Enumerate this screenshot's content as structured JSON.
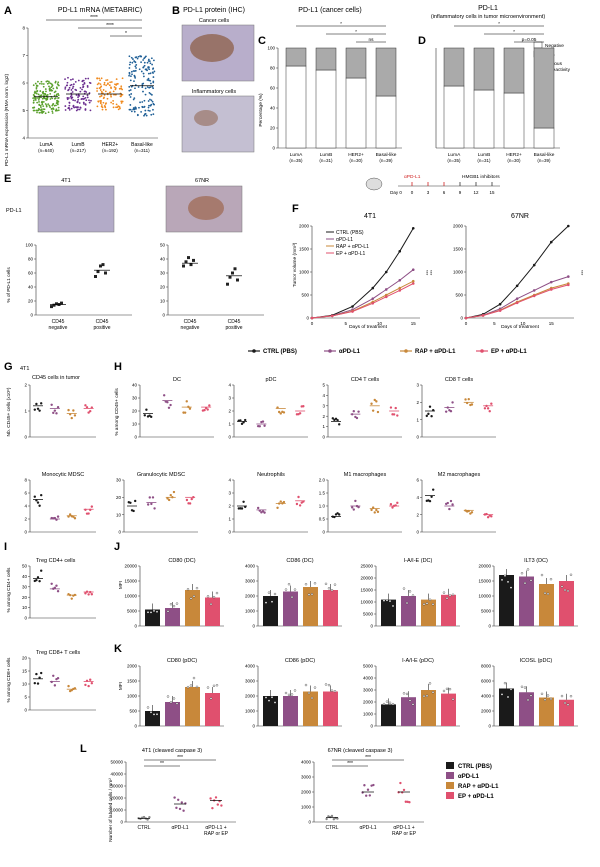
{
  "colors": {
    "ctrl": "#1a1a1a",
    "apdl1": "#8e4f86",
    "rap": "#c8883a",
    "ep": "#e0506e",
    "luma": "#5aa02c",
    "lumb": "#6a2d8f",
    "her2": "#f08a1e",
    "basal": "#1f5f96",
    "negative": "#ffffff",
    "positive": "#aaaaaa"
  },
  "legend_main": [
    "CTRL (PBS)",
    "αPD-L1",
    "RAP + αPD-L1",
    "EP + αPD-L1"
  ],
  "legend_L": [
    "CTRL (PBS)",
    "αPD-L1",
    "RAP + αPD-L1",
    "EP + αPD-L1"
  ],
  "schedule": {
    "apdl1_label": "αPD-L1",
    "hmgb1_label": "HMGB1 inhibitors",
    "days": [
      "Day 0",
      "0",
      "3",
      "6",
      "9",
      "12",
      "15"
    ]
  },
  "panelA": {
    "letter": "A",
    "title": "PD-L1 mRNA (METABRIC)",
    "ylabel": "PD-L1 mRNA expression (RMA norm. log2)",
    "groups": [
      "LumA",
      "LumB",
      "HER2+",
      "Basal-like"
    ],
    "ns": [
      "(n=640)",
      "(n=217)",
      "(n=192)",
      "(n=311)"
    ],
    "sig": [
      "****",
      "****",
      "*"
    ]
  },
  "panelB": {
    "letter": "B",
    "title": "PD-L1 protein (IHC)",
    "cap1": "Cancer cells",
    "cap2": "Inflammatory cells"
  },
  "panelC": {
    "letter": "C",
    "title": "PD-L1 (cancer cells)",
    "ylabel": "Percentage (%)",
    "sig": [
      "*",
      "*",
      "ns"
    ]
  },
  "panelD": {
    "letter": "D",
    "title1": "PD-L1",
    "title2": "(inflammatory cells in tumor microenvironment)",
    "sig": [
      "*",
      "*",
      "p=0.05"
    ],
    "legend": [
      "Negative",
      "≥1%"
    ],
    "legend_note1": "Membranous",
    "legend_note2": "immunoreactivity"
  },
  "panelE": {
    "letter": "E",
    "cell1": "4T1",
    "cell2": "67NR",
    "row": "PD-L1",
    "ylabel": "% of PD-L1 cells",
    "xcats": [
      "CD45 negative",
      "CD45 positive"
    ]
  },
  "panelF": {
    "letter": "F",
    "ylabel": "Tumor volume (mm³)",
    "xlabel": "Days of treatment",
    "t1": "4T1",
    "t2": "67NR",
    "sig": [
      "***",
      "***",
      "***"
    ]
  },
  "panelG": {
    "letter": "G",
    "sub": "4T1",
    "title": "CD45 cells in tumor",
    "ylabel": "Nb. CD45+ cells (x10⁶)"
  },
  "panelH": {
    "letter": "H",
    "ylabel": "% among CD45+ cells",
    "titles": [
      "DC",
      "pDC",
      "CD4 T cells",
      "CD8 T cells",
      "Monocytic MDSC",
      "Granulocytic MDSC",
      "Neutrophils",
      "M1 macrophages",
      "M2 macrophages"
    ]
  },
  "panelI": {
    "letter": "I",
    "t1": "Treg CD4+ cells",
    "y1": "% among CD4+ cells",
    "t2": "Treg CD8+ T cells",
    "y2": "% among CD8+ cells"
  },
  "panelJ": {
    "letter": "J",
    "ylabel": "MFI",
    "titles": [
      "CD80 (DC)",
      "CD86 (DC)",
      "I-A/I-E (DC)",
      "ILT3 (DC)"
    ]
  },
  "panelK": {
    "letter": "K",
    "ylabel": "MFI",
    "titles": [
      "CD80 (pDC)",
      "CD86 (pDC)",
      "I-A/I-E (pDC)",
      "ICOSL (pDC)"
    ]
  },
  "panelL": {
    "letter": "L",
    "t1": "4T1 (cleaved caspase 3)",
    "t2": "67NR (cleaved caspase 3)",
    "ylabel": "Number of labeled cells / mm²",
    "xcats": [
      "CTRL",
      "αPD-L1",
      "αPD-L1 +",
      "RAP or EP"
    ],
    "sig": [
      "**",
      "***",
      "***",
      "***"
    ]
  },
  "chart_data": [
    {
      "type": "scatter",
      "panel": "A",
      "categories": [
        "LumA",
        "LumB",
        "HER2+",
        "Basal-like"
      ],
      "values": [
        5.5,
        5.6,
        5.6,
        5.9
      ],
      "ylim": [
        4,
        8
      ]
    },
    {
      "type": "bar",
      "panel": "C",
      "categories": [
        "LumA",
        "LumB",
        "HER2+",
        "Basal-like"
      ],
      "series": [
        {
          "name": "Negative",
          "values": [
            82,
            78,
            70,
            52
          ]
        },
        {
          "name": "≥1%",
          "values": [
            18,
            22,
            30,
            48
          ]
        }
      ],
      "ylim": [
        0,
        100
      ],
      "yticks": [
        "0",
        "20",
        "40",
        "60",
        "80",
        "100"
      ],
      "xticks": [
        "LumA",
        "LumB",
        "HER2+",
        "Basal-like"
      ],
      "ns": [
        "(n=35)",
        "(n=31)",
        "(n=30)",
        "(n=39)"
      ]
    },
    {
      "type": "bar",
      "panel": "D",
      "categories": [
        "LumA",
        "LumB",
        "HER2+",
        "Basal-like"
      ],
      "series": [
        {
          "name": "Negative",
          "values": [
            62,
            58,
            55,
            20
          ]
        },
        {
          "name": "≥1%",
          "values": [
            38,
            42,
            45,
            80
          ]
        }
      ],
      "ylim": [
        0,
        100
      ],
      "xticks": [
        "LumA",
        "LumB",
        "HER2+",
        "Basal-like"
      ],
      "ns": [
        "(n=35)",
        "(n=31)",
        "(n=30)",
        "(n=39)"
      ]
    },
    {
      "type": "scatter",
      "panel": "E-4T1",
      "categories": [
        "CD45 negative",
        "CD45 positive"
      ],
      "values": [
        15,
        64
      ],
      "points": [
        [
          12,
          14,
          16,
          15,
          17
        ],
        [
          55,
          62,
          70,
          72,
          60
        ]
      ],
      "ylim": [
        0,
        100
      ],
      "yticks": [
        "0",
        "20",
        "40",
        "60",
        "80",
        "100"
      ]
    },
    {
      "type": "scatter",
      "panel": "E-67NR",
      "categories": [
        "CD45 negative",
        "CD45 positive"
      ],
      "values": [
        37,
        28
      ],
      "points": [
        [
          35,
          38,
          41,
          36,
          39
        ],
        [
          22,
          27,
          30,
          33,
          25
        ]
      ],
      "ylim": [
        0,
        50
      ],
      "yticks": [
        "0",
        "10",
        "20",
        "30",
        "40",
        "50"
      ]
    },
    {
      "type": "line",
      "panel": "F-4T1",
      "x": [
        0,
        3,
        6,
        9,
        11,
        13,
        15
      ],
      "series": [
        {
          "name": "CTRL",
          "values": [
            0,
            60,
            250,
            650,
            1000,
            1450,
            1950
          ]
        },
        {
          "name": "αPD-L1",
          "values": [
            0,
            50,
            180,
            420,
            620,
            820,
            1050
          ]
        },
        {
          "name": "RAP + αPD-L1",
          "values": [
            0,
            45,
            150,
            350,
            500,
            650,
            800
          ]
        },
        {
          "name": "EP + αPD-L1",
          "values": [
            0,
            45,
            140,
            320,
            460,
            600,
            750
          ]
        }
      ],
      "ylim": [
        0,
        2000
      ],
      "yticks": [
        "0",
        "500",
        "1000",
        "1500",
        "2000"
      ],
      "xticks": [
        "0",
        "5",
        "10",
        "15"
      ]
    },
    {
      "type": "line",
      "panel": "F-67NR",
      "x": [
        0,
        3,
        6,
        9,
        12,
        15,
        18
      ],
      "series": [
        {
          "name": "CTRL",
          "values": [
            0,
            80,
            300,
            700,
            1150,
            1650,
            2000
          ]
        },
        {
          "name": "αPD-L1",
          "values": [
            0,
            60,
            200,
            420,
            600,
            780,
            900
          ]
        },
        {
          "name": "RAP + αPD-L1",
          "values": [
            0,
            55,
            170,
            350,
            500,
            650,
            750
          ]
        },
        {
          "name": "EP + αPD-L1",
          "values": [
            0,
            55,
            160,
            330,
            480,
            620,
            720
          ]
        }
      ],
      "ylim": [
        0,
        2000
      ],
      "yticks": [
        "0",
        "500",
        "1000",
        "1500",
        "2000"
      ],
      "xticks": [
        "0",
        "5",
        "10",
        "15"
      ]
    },
    {
      "type": "scatter",
      "panel": "G",
      "categories": [
        "CTRL (PBS)",
        "αPD-L1",
        "RAP + αPD-L1",
        "EP + αPD-L1"
      ],
      "values": [
        1.2,
        1.1,
        0.9,
        1.1
      ],
      "ylim": [
        0,
        2
      ],
      "yticks": [
        "0",
        "1",
        "2"
      ]
    },
    {
      "type": "scatter",
      "panel": "H",
      "panels": [
        {
          "title": "DC",
          "values": [
            18,
            28,
            23,
            23
          ],
          "ylim": [
            0,
            40
          ],
          "yticks": [
            "0",
            "10",
            "20",
            "30",
            "40"
          ]
        },
        {
          "title": "pDC",
          "values": [
            1.2,
            1.0,
            2.2,
            2.0
          ],
          "ylim": [
            0,
            4
          ],
          "yticks": [
            "0",
            "1",
            "2",
            "3",
            "4"
          ]
        },
        {
          "title": "CD4 T cells",
          "values": [
            1.5,
            2.2,
            3.0,
            2.5
          ],
          "ylim": [
            0,
            5
          ],
          "yticks": [
            "0",
            "1",
            "2",
            "3",
            "4",
            "5"
          ]
        },
        {
          "title": "CD8 T cells",
          "values": [
            1.5,
            1.7,
            2.0,
            1.8
          ],
          "ylim": [
            0,
            3
          ],
          "yticks": [
            "0",
            "1",
            "2",
            "3"
          ]
        },
        {
          "title": "Monocytic MDSC",
          "values": [
            5,
            2,
            2.5,
            3.5
          ],
          "ylim": [
            0,
            8
          ],
          "yticks": [
            "0",
            "2",
            "4",
            "6",
            "8"
          ]
        },
        {
          "title": "Granulocytic MDSC",
          "values": [
            15,
            17,
            20,
            20
          ],
          "ylim": [
            0,
            30
          ],
          "yticks": [
            "0",
            "10",
            "20",
            "30"
          ]
        },
        {
          "title": "Neutrophils",
          "values": [
            2,
            1.7,
            2.2,
            2.4
          ],
          "ylim": [
            0,
            4
          ],
          "yticks": [
            "0",
            "1",
            "2",
            "3",
            "4"
          ]
        },
        {
          "title": "M1 macrophages",
          "values": [
            0.6,
            1.0,
            0.9,
            1.0
          ],
          "ylim": [
            0,
            2
          ],
          "yticks": [
            "0",
            "0.5",
            "1.0",
            "1.5",
            "2.0"
          ]
        },
        {
          "title": "M2 macrophages",
          "values": [
            4.2,
            3.0,
            2.5,
            2.0
          ],
          "ylim": [
            0,
            6
          ],
          "yticks": [
            "0",
            "2",
            "4",
            "6"
          ]
        }
      ]
    },
    {
      "type": "scatter",
      "panel": "I",
      "panels": [
        {
          "title": "Treg CD4+ cells",
          "values": [
            38,
            28,
            22,
            25
          ],
          "ylim": [
            0,
            50
          ],
          "yticks": [
            "0",
            "10",
            "20",
            "30",
            "40",
            "50"
          ]
        },
        {
          "title": "Treg CD8+ T cells",
          "values": [
            12,
            11,
            8,
            11
          ],
          "ylim": [
            0,
            20
          ],
          "yticks": [
            "0",
            "5",
            "10",
            "15",
            "20"
          ]
        }
      ]
    },
    {
      "type": "bar",
      "panel": "J",
      "categories": [
        "CTRL (PBS)",
        "αPD-L1",
        "RAP + αPD-L1",
        "EP + αPD-L1"
      ],
      "panels": [
        {
          "title": "CD80 (DC)",
          "values": [
            5500,
            6000,
            12000,
            9500
          ],
          "ylim": [
            0,
            20000
          ],
          "yticks": [
            "0",
            "5000",
            "10000",
            "15000",
            "20000"
          ]
        },
        {
          "title": "CD86 (DC)",
          "values": [
            2000,
            2300,
            2600,
            2400
          ],
          "ylim": [
            0,
            4000
          ],
          "yticks": [
            "0",
            "1000",
            "2000",
            "3000",
            "4000"
          ]
        },
        {
          "title": "I-A/I-E (DC)",
          "values": [
            11000,
            12500,
            11000,
            13000
          ],
          "ylim": [
            0,
            25000
          ],
          "yticks": [
            "0",
            "5000",
            "10000",
            "15000",
            "20000",
            "25000"
          ]
        },
        {
          "title": "ILT3 (DC)",
          "values": [
            17000,
            16500,
            14000,
            15000
          ],
          "ylim": [
            0,
            20000
          ],
          "yticks": [
            "0",
            "5000",
            "10000",
            "15000",
            "20000"
          ]
        }
      ]
    },
    {
      "type": "bar",
      "panel": "K",
      "categories": [
        "CTRL (PBS)",
        "αPD-L1",
        "RAP + αPD-L1",
        "EP + αPD-L1"
      ],
      "panels": [
        {
          "title": "CD80 (pDC)",
          "values": [
            500,
            800,
            1300,
            1100
          ],
          "ylim": [
            0,
            2000
          ],
          "yticks": [
            "0",
            "500",
            "1000",
            "1500",
            "2000"
          ]
        },
        {
          "title": "CD86 (pDC)",
          "values": [
            2000,
            2000,
            2300,
            2300
          ],
          "ylim": [
            0,
            4000
          ],
          "yticks": [
            "0",
            "1000",
            "2000",
            "3000",
            "4000"
          ]
        },
        {
          "title": "I-A/I-E (pDC)",
          "values": [
            1800,
            2400,
            3000,
            2700
          ],
          "ylim": [
            0,
            5000
          ],
          "yticks": [
            "0",
            "1000",
            "2000",
            "3000",
            "4000",
            "5000"
          ]
        },
        {
          "title": "ICOSL (pDC)",
          "values": [
            5000,
            4500,
            3800,
            3500
          ],
          "ylim": [
            0,
            8000
          ],
          "yticks": [
            "0",
            "2000",
            "4000",
            "6000",
            "8000"
          ]
        }
      ]
    },
    {
      "type": "scatter",
      "panel": "L",
      "panels": [
        {
          "title": "4T1 (cleaved caspase 3)",
          "values": [
            3000,
            15000,
            18000
          ],
          "ylim": [
            0,
            50000
          ],
          "yticks": [
            "0",
            "10000",
            "20000",
            "30000",
            "40000",
            "50000"
          ]
        },
        {
          "title": "67NR (cleaved caspase 3)",
          "values": [
            300,
            2000,
            2000
          ],
          "ylim": [
            0,
            4000
          ],
          "yticks": [
            "0",
            "1000",
            "2000",
            "3000",
            "4000"
          ]
        }
      ]
    }
  ]
}
